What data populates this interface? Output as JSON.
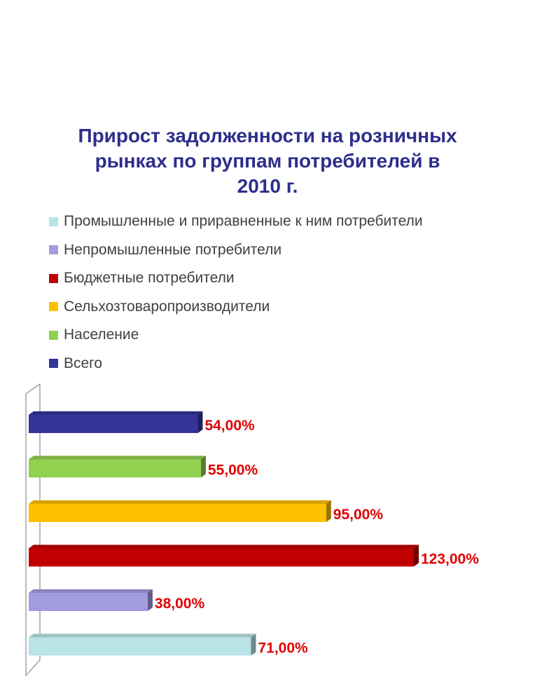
{
  "chart_data": {
    "type": "bar",
    "orientation": "horizontal",
    "title": "Прирост задолженности на розничных рынках по группам потребителей в 2010 г.",
    "categories": [
      "Промышленные и приравненные к ним потребители",
      "Непромышленные потребители",
      "Бюджетные потребители",
      "Сельхозтоваропроизводители",
      "Население",
      "Всего"
    ],
    "values": [
      71,
      38,
      123,
      95,
      55,
      54
    ],
    "data_labels": [
      "71,00%",
      "38,00%",
      "123,00%",
      "95,00%",
      "55,00%",
      "54,00%"
    ],
    "colors": [
      "#B9E3E6",
      "#A09CDE",
      "#C00000",
      "#FFC000",
      "#92D050",
      "#333399"
    ],
    "value_label_color": "#E00000",
    "xlim": [
      0,
      130
    ],
    "grid": false,
    "legend_position": "top",
    "three_d": true
  }
}
